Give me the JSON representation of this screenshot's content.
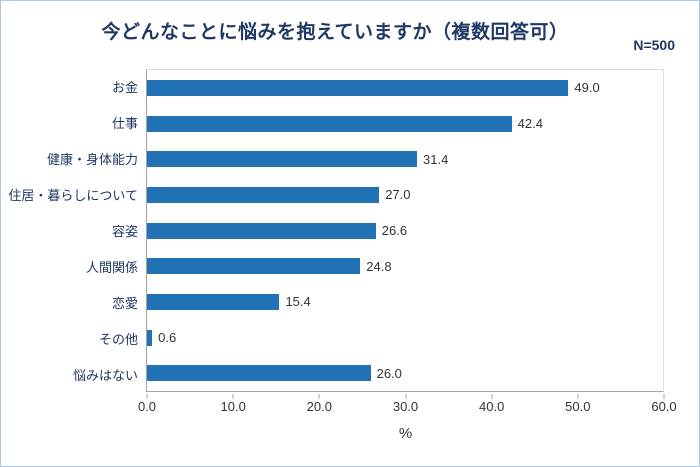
{
  "chart": {
    "title": "今どんなことに悩みを抱えていますか（複数回答可）",
    "n_label": "N=500",
    "xlabel": "%"
  },
  "chart_data": {
    "type": "bar",
    "orientation": "horizontal",
    "title": "今どんなことに悩みを抱えていますか（複数回答可）",
    "n_label": "N=500",
    "categories": [
      "お金",
      "仕事",
      "健康・身体能力",
      "住居・暮らしについて",
      "容姿",
      "人間関係",
      "恋愛",
      "その他",
      "悩みはない"
    ],
    "values": [
      49.0,
      42.4,
      31.4,
      27.0,
      26.6,
      24.8,
      15.4,
      0.6,
      26.0
    ],
    "xlabel": "%",
    "xlim": [
      0,
      60
    ],
    "x_ticks": [
      "0.0",
      "10.0",
      "20.0",
      "30.0",
      "40.0",
      "50.0",
      "60.0"
    ],
    "bar_color": "#2173B6",
    "title_color": "#1F3864",
    "label_color": "#1F3864",
    "legend": "none",
    "grid": "off"
  }
}
